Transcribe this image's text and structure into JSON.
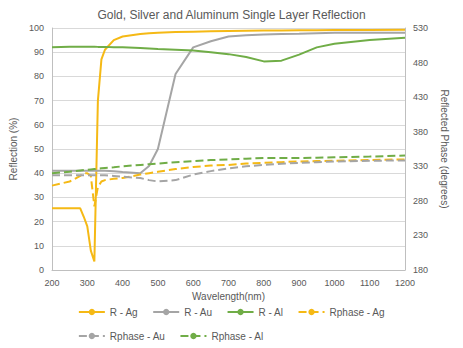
{
  "chart_data": {
    "type": "line",
    "title": "Gold, Silver and Aluminum Single Layer Reflection",
    "x_label": "Wavelength(nm)",
    "y_label": "Reflection (%)",
    "y2_label": "Reflected Phase (degrees)",
    "x": [
      200,
      250,
      280,
      290,
      300,
      310,
      320,
      330,
      340,
      350,
      375,
      400,
      450,
      475,
      500,
      550,
      600,
      650,
      700,
      750,
      800,
      850,
      900,
      950,
      1000,
      1100,
      1200
    ],
    "xlim": [
      200,
      1200
    ],
    "xticks": [
      200,
      300,
      400,
      500,
      600,
      700,
      800,
      900,
      1000,
      1100,
      1200
    ],
    "ylim": [
      0,
      100
    ],
    "yticks": [
      0,
      10,
      20,
      30,
      40,
      50,
      60,
      70,
      80,
      90,
      100
    ],
    "y2lim": [
      180,
      530
    ],
    "y2ticks": [
      180,
      230,
      280,
      330,
      380,
      430,
      480,
      530
    ],
    "grid": true,
    "legend": "bottom",
    "series": [
      {
        "name": "R - Ag",
        "color": "#f5b915",
        "line_style": "solid",
        "values": [
          25.5,
          25.5,
          25.5,
          22,
          18,
          8,
          3.5,
          70,
          87,
          91,
          95,
          96.5,
          97.5,
          97.8,
          98,
          98.3,
          98.5,
          98.7,
          98.8,
          98.9,
          99,
          99,
          99.1,
          99.1,
          99.2,
          99.2,
          99.3
        ]
      },
      {
        "name": "R - Au",
        "color": "#a5a5a5",
        "line_style": "solid",
        "values": [
          41,
          41,
          41,
          41,
          41,
          41,
          41,
          41,
          41,
          41,
          40.8,
          40.5,
          40,
          43,
          50,
          81,
          92,
          94.5,
          96.5,
          97,
          97.3,
          97.5,
          97.6,
          97.8,
          98,
          98,
          98
        ]
      },
      {
        "name": "R - Al",
        "color": "#70ad47",
        "line_style": "solid",
        "values": [
          92,
          92.3,
          92.3,
          92.3,
          92.3,
          92.3,
          92.3,
          92.2,
          92.2,
          92.2,
          92,
          92,
          91.7,
          91.5,
          91.3,
          91,
          90.7,
          90,
          89.2,
          88,
          86.2,
          86.5,
          89,
          92,
          93.5,
          95,
          96
        ]
      },
      {
        "name": "Rphase - Ag",
        "color": "#f5b915",
        "line_style": "dashed",
        "axis": "y2",
        "values": [
          302,
          308,
          316,
          320,
          320,
          316,
          272,
          300,
          308,
          310,
          312,
          313,
          318,
          320,
          322,
          326,
          329,
          331,
          332,
          334,
          335,
          336,
          337,
          337.5,
          338,
          339,
          340
        ]
      },
      {
        "name": "Rphase - Au",
        "color": "#a5a5a5",
        "line_style": "dashed",
        "axis": "y2",
        "values": [
          317,
          317,
          317,
          317,
          317,
          317,
          317,
          317,
          317,
          317,
          316,
          315,
          313,
          310,
          308,
          310,
          318,
          323,
          327,
          330,
          332,
          333.5,
          335,
          336,
          337,
          338,
          338.5
        ]
      },
      {
        "name": "Rphase - Al",
        "color": "#70ad47",
        "line_style": "dashed",
        "axis": "y2",
        "values": [
          320,
          322,
          324,
          324.5,
          325,
          325.5,
          326,
          326.5,
          327,
          327.5,
          328.5,
          330,
          332,
          333,
          334,
          336,
          337.5,
          339,
          340,
          341,
          342,
          342,
          342,
          342.5,
          343,
          344,
          345.5
        ]
      }
    ]
  }
}
